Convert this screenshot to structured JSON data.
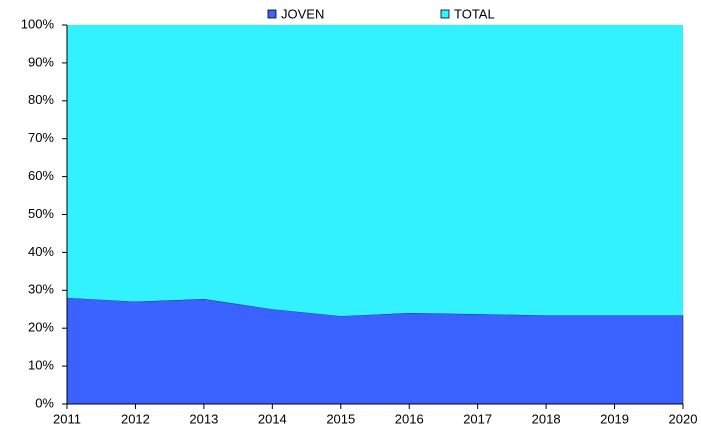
{
  "chart_data": {
    "type": "stacked_area",
    "categories": [
      "2011",
      "2012",
      "2013",
      "2014",
      "2015",
      "2016",
      "2017",
      "2018",
      "2019",
      "2020"
    ],
    "series": [
      {
        "name": "JOVEN",
        "color": "#3a62ff",
        "values": [
          28,
          27,
          27.7,
          25,
          23.2,
          24,
          23.7,
          23.4,
          23.4,
          23.4
        ]
      },
      {
        "name": "TOTAL",
        "color": "#33f2ff",
        "values": [
          72,
          73,
          72.3,
          75,
          76.8,
          76,
          76.3,
          76.6,
          76.6,
          76.6
        ]
      }
    ],
    "ylim": [
      0,
      100
    ],
    "yticks": [
      {
        "value": 0,
        "label": "0%"
      },
      {
        "value": 10,
        "label": "10%"
      },
      {
        "value": 20,
        "label": "20%"
      },
      {
        "value": 30,
        "label": "30%"
      },
      {
        "value": 40,
        "label": "40%"
      },
      {
        "value": 50,
        "label": "50%"
      },
      {
        "value": 60,
        "label": "60%"
      },
      {
        "value": 70,
        "label": "70%"
      },
      {
        "value": 80,
        "label": "80%"
      },
      {
        "value": 90,
        "label": "90%"
      },
      {
        "value": 100,
        "label": "100%"
      }
    ],
    "legend": "top"
  }
}
